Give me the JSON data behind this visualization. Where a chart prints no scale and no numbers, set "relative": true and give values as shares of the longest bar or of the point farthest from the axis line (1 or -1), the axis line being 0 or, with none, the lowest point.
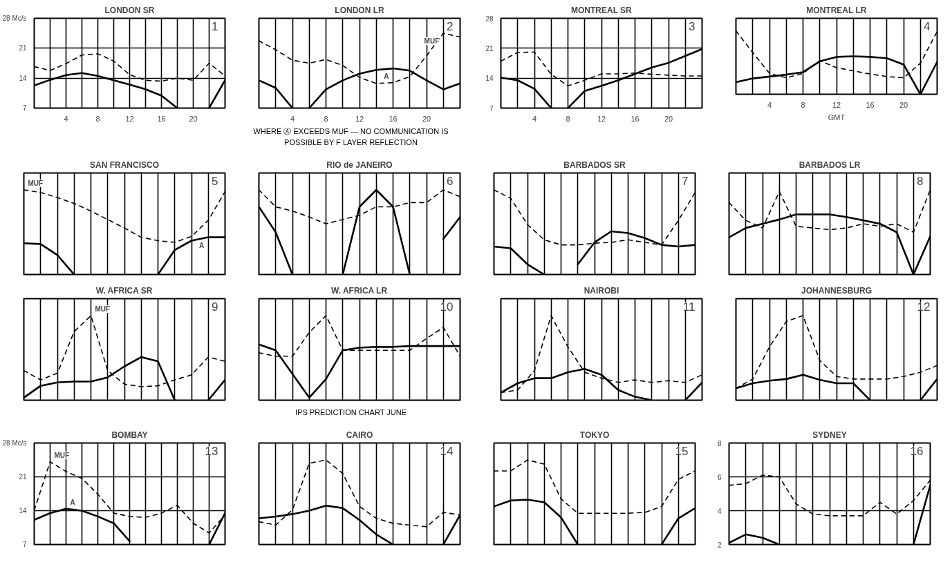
{
  "chart_data": [
    {
      "type": "line",
      "title": "LONDON SR",
      "subtitle": "1",
      "x": [
        0,
        2,
        4,
        6,
        8,
        10,
        12,
        14,
        16,
        18,
        20,
        22,
        24
      ],
      "xlim": [
        0,
        24
      ],
      "xticks": [
        {
          "value": 0,
          "label": null
        },
        {
          "value": 2,
          "label": null
        },
        4,
        {
          "value": 6,
          "label": null
        },
        8,
        {
          "value": 10,
          "label": null
        },
        12,
        {
          "value": 14,
          "label": null
        },
        16,
        {
          "value": 18,
          "label": null
        },
        20,
        {
          "value": 22,
          "label": null
        },
        {
          "value": 24,
          "label": null
        }
      ],
      "ylim": [
        7,
        28
      ],
      "yticks": [
        7,
        14,
        21,
        {
          "value": 28,
          "label": "28 Mc/s"
        }
      ],
      "grid": true,
      "series": [
        {
          "color": "#000000",
          "line_style": "dashed",
          "values": [
            16.7,
            15.8,
            17.4,
            19.4,
            19.7,
            18,
            14.8,
            13.5,
            13.3,
            14,
            13.5,
            17.5,
            14.5
          ]
        },
        {
          "color": "#000000",
          "line_style": "solid",
          "values": [
            12.3,
            13.6,
            14.7,
            15.2,
            14.5,
            13.5,
            12.5,
            11.4,
            9.9,
            7,
            null,
            7,
            13.5
          ]
        }
      ]
    },
    {
      "type": "line",
      "title": "LONDON LR",
      "subtitle": "2",
      "relative": true,
      "x": [
        0,
        2,
        4,
        6,
        8,
        10,
        12,
        14,
        16,
        18,
        20,
        22,
        24
      ],
      "xlim": [
        0,
        24
      ],
      "xticks": [
        {
          "value": 0,
          "label": null
        },
        {
          "value": 2,
          "label": null
        },
        4,
        {
          "value": 6,
          "label": null
        },
        8,
        {
          "value": 10,
          "label": null
        },
        12,
        {
          "value": 14,
          "label": null
        },
        16,
        {
          "value": 18,
          "label": null
        },
        20,
        {
          "value": 22,
          "label": null
        },
        {
          "value": 24,
          "label": null
        }
      ],
      "grid": "x",
      "annotations": [
        "WHERE Ⓐ EXCEEDS MUF --- NO COMMUNICATION IS POSSIBLE BY F LAYER REFLECTION"
      ],
      "series": [
        {
          "name": "MUF",
          "color": "#000000",
          "line_style": "dashed",
          "values": [
            0.9,
            0.78,
            0.64,
            0.6,
            0.65,
            0.57,
            0.41,
            0.33,
            0.34,
            0.42,
            0.7,
            1.0,
            0.95
          ]
        },
        {
          "name": "A",
          "color": "#000000",
          "line_style": "solid",
          "x": [
            0,
            2,
            4,
            5,
            6,
            8,
            10,
            12,
            14,
            16,
            18,
            20,
            22,
            24
          ],
          "values": [
            0.37,
            0.27,
            0,
            null,
            0,
            0.25,
            0.37,
            0.46,
            0.51,
            0.53,
            0.5,
            0.37,
            0.25,
            0.33
          ]
        }
      ]
    },
    {
      "type": "line",
      "title": "MONTREAL SR",
      "subtitle": "3",
      "x": [
        0,
        2,
        4,
        6,
        8,
        10,
        12,
        14,
        16,
        18,
        20,
        22,
        24
      ],
      "xlim": [
        0,
        24
      ],
      "xticks": [
        {
          "value": 0,
          "label": null
        },
        {
          "value": 2,
          "label": null
        },
        4,
        {
          "value": 6,
          "label": null
        },
        8,
        {
          "value": 10,
          "label": null
        },
        12,
        {
          "value": 14,
          "label": null
        },
        16,
        {
          "value": 18,
          "label": null
        },
        20,
        {
          "value": 22,
          "label": null
        },
        {
          "value": 24,
          "label": null
        }
      ],
      "ylim": [
        7,
        28
      ],
      "yticks": [
        7,
        14,
        21,
        28
      ],
      "grid": true,
      "series": [
        {
          "color": "#000000",
          "line_style": "dashed",
          "values": [
            18,
            20,
            20.1,
            14.9,
            12.2,
            13.5,
            15,
            15,
            15.2,
            14.9,
            14.7,
            14.5,
            14.5
          ]
        },
        {
          "color": "#000000",
          "line_style": "solid",
          "x": [
            0,
            2,
            4,
            6,
            7,
            8,
            10,
            12,
            14,
            16,
            18,
            20,
            22,
            24
          ],
          "values": [
            14.1,
            13.5,
            11.5,
            7,
            null,
            7,
            11,
            12.2,
            13.5,
            15,
            16.5,
            17.6,
            19.2,
            20.8
          ]
        }
      ]
    },
    {
      "type": "line",
      "title": "MONTREAL LR",
      "subtitle": "4",
      "xlabel": "GMT",
      "relative": true,
      "x": [
        0,
        2,
        4,
        6,
        8,
        10,
        12,
        14,
        16,
        18,
        20,
        22,
        24
      ],
      "xlim": [
        0,
        24
      ],
      "xticks": [
        {
          "value": 0,
          "label": null
        },
        {
          "value": 2,
          "label": null
        },
        4,
        {
          "value": 6,
          "label": null
        },
        8,
        {
          "value": 10,
          "label": null
        },
        12,
        {
          "value": 14,
          "label": null
        },
        16,
        {
          "value": 18,
          "label": null
        },
        20,
        {
          "value": 22,
          "label": null
        },
        {
          "value": 24,
          "label": null
        }
      ],
      "grid": "x",
      "series": [
        {
          "color": "#000000",
          "line_style": "dashed",
          "values": [
            1.0,
            0.66,
            0.33,
            0.26,
            0.33,
            0.53,
            0.42,
            0.37,
            0.32,
            0.28,
            0.26,
            0.49,
            0.99
          ]
        },
        {
          "color": "#000000",
          "line_style": "solid",
          "values": [
            0.19,
            0.25,
            0.28,
            0.31,
            0.35,
            0.52,
            0.59,
            0.6,
            0.59,
            0.57,
            0.47,
            0,
            0.51
          ]
        }
      ]
    },
    {
      "type": "line",
      "title": "SAN FRANCISCO",
      "subtitle": "5",
      "relative": true,
      "categories": [
        null,
        null,
        null,
        null,
        null,
        null,
        null,
        null,
        null,
        null,
        null,
        null,
        null
      ],
      "grid": "x",
      "series": [
        {
          "name": "MUF",
          "color": "#000000",
          "line_style": "dashed",
          "values": [
            1.0,
            0.97,
            0.91,
            0.84,
            0.75,
            0.65,
            0.55,
            0.44,
            0.4,
            0.38,
            0.45,
            0.64,
            0.98
          ]
        },
        {
          "name": "A",
          "color": "#000000",
          "line_style": "solid",
          "values": [
            0.37,
            0.36,
            0.23,
            0,
            null,
            null,
            null,
            null,
            0,
            0.29,
            0.4,
            0.44,
            0.44
          ]
        }
      ]
    },
    {
      "type": "line",
      "title": "RIO de JANEIRO",
      "subtitle": "6",
      "relative": true,
      "categories": [
        null,
        null,
        null,
        null,
        null,
        null,
        null,
        null,
        null,
        null,
        null,
        null,
        null
      ],
      "grid": "x",
      "series": [
        {
          "color": "#000000",
          "line_style": "dashed",
          "values": [
            1.0,
            0.8,
            0.75,
            0.68,
            0.6,
            0.65,
            0.7,
            0.8,
            0.8,
            0.85,
            0.85,
            1.0,
            0.92
          ]
        },
        {
          "color": "#000000",
          "line_style": "solid",
          "values": [
            0.8,
            0.5,
            0,
            null,
            null,
            0,
            0.8,
            1.0,
            0.8,
            0,
            null,
            0.42,
            0.68
          ]
        }
      ]
    },
    {
      "type": "line",
      "title": "BARBADOS SR",
      "subtitle": "7",
      "relative": true,
      "categories": [
        null,
        null,
        null,
        null,
        null,
        null,
        null,
        null,
        null,
        null,
        null,
        null,
        null
      ],
      "grid": "x",
      "series": [
        {
          "color": "#000000",
          "line_style": "dashed",
          "values": [
            1.0,
            0.9,
            0.59,
            0.41,
            0.35,
            0.35,
            0.37,
            0.38,
            0.41,
            0.38,
            0.35,
            0.64,
            0.97
          ]
        },
        {
          "color": "#000000",
          "line_style": "solid",
          "values": [
            0.33,
            0.31,
            0.12,
            0,
            null,
            0.12,
            0.38,
            0.51,
            0.49,
            0.43,
            0.35,
            0.33,
            0.35
          ]
        }
      ]
    },
    {
      "type": "line",
      "title": "BARBADOS LR",
      "subtitle": "8",
      "relative": true,
      "categories": [
        null,
        null,
        null,
        null,
        null,
        null,
        null,
        null,
        null,
        null,
        null,
        null,
        null
      ],
      "grid": "x",
      "series": [
        {
          "color": "#000000",
          "line_style": "dashed",
          "values": [
            0.85,
            0.64,
            0.55,
            0.98,
            0.57,
            0.55,
            0.53,
            0.55,
            0.6,
            0.57,
            0.6,
            0.5,
            1.0
          ]
        },
        {
          "color": "#000000",
          "line_style": "solid",
          "values": [
            0.44,
            0.55,
            0.6,
            0.65,
            0.71,
            0.71,
            0.71,
            0.68,
            0.64,
            0.6,
            0.5,
            0,
            0.45
          ]
        }
      ]
    },
    {
      "type": "line",
      "title": "W. AFRICA SR",
      "subtitle": "9",
      "relative": true,
      "categories": [
        null,
        null,
        null,
        null,
        null,
        null,
        null,
        null,
        null,
        null,
        null,
        null,
        null
      ],
      "grid": "x",
      "series": [
        {
          "name": "MUF",
          "color": "#000000",
          "line_style": "dashed",
          "values": [
            0.35,
            0.24,
            0.32,
            0.81,
            1.0,
            0.35,
            0.19,
            0.16,
            0.17,
            0.24,
            0.3,
            0.51,
            0.46
          ]
        },
        {
          "color": "#000000",
          "line_style": "solid",
          "values": [
            0.03,
            0.17,
            0.21,
            0.22,
            0.22,
            0.27,
            0.4,
            0.51,
            0.46,
            0,
            null,
            0,
            0.24
          ]
        }
      ]
    },
    {
      "type": "line",
      "title": "W. AFRICA LR",
      "subtitle": "10",
      "relative": true,
      "categories": [
        null,
        null,
        null,
        null,
        null,
        null,
        null,
        null,
        null,
        null,
        null,
        null,
        null
      ],
      "grid": "x",
      "annotations": [
        "IPS PREDICTION CHART JUNE"
      ],
      "series": [
        {
          "color": "#000000",
          "line_style": "dashed",
          "values": [
            0.56,
            0.52,
            0.52,
            0.8,
            1.0,
            0.59,
            0.59,
            0.59,
            0.59,
            0.59,
            0.73,
            0.86,
            0.52
          ]
        },
        {
          "color": "#000000",
          "line_style": "solid",
          "values": [
            0.66,
            0.59,
            0.31,
            0.03,
            0.25,
            0.59,
            0.62,
            0.63,
            0.63,
            0.64,
            0.64,
            0.64,
            0.64
          ]
        }
      ]
    },
    {
      "type": "line",
      "title": "NAIROBI",
      "subtitle": "11",
      "relative": true,
      "categories": [
        null,
        null,
        null,
        null,
        null,
        null,
        null,
        null,
        null,
        null,
        null,
        null,
        null
      ],
      "grid": "x",
      "series": [
        {
          "color": "#000000",
          "line_style": "dashed",
          "values": [
            0.09,
            0.12,
            0.35,
            1.0,
            0.63,
            0.33,
            0.26,
            0.21,
            0.24,
            0.21,
            0.23,
            0.21,
            0.3
          ]
        },
        {
          "color": "#000000",
          "line_style": "solid",
          "values": [
            0.09,
            0.2,
            0.26,
            0.26,
            0.33,
            0.37,
            0.3,
            0.12,
            0.04,
            0,
            null,
            0,
            0.21
          ]
        }
      ]
    },
    {
      "type": "line",
      "title": "JOHANNESBURG",
      "subtitle": "12",
      "relative": true,
      "categories": [
        null,
        null,
        null,
        null,
        null,
        null,
        null,
        null,
        null,
        null,
        null,
        null,
        null
      ],
      "grid": "x",
      "series": [
        {
          "color": "#000000",
          "line_style": "dashed",
          "values": [
            0.14,
            0.25,
            0.63,
            0.93,
            1.0,
            0.47,
            0.28,
            0.25,
            0.25,
            0.25,
            0.28,
            0.33,
            0.41
          ]
        },
        {
          "color": "#000000",
          "line_style": "solid",
          "values": [
            0.14,
            0.2,
            0.23,
            0.25,
            0.3,
            0.24,
            0.2,
            0.2,
            0,
            null,
            null,
            0,
            0.25
          ]
        }
      ]
    },
    {
      "type": "line",
      "title": "BOMBAY",
      "subtitle": "13",
      "categories": [
        null,
        null,
        null,
        null,
        null,
        null,
        null,
        null,
        null,
        null,
        null,
        null,
        null
      ],
      "ylim": [
        7,
        28
      ],
      "yticks": [
        7,
        14,
        21,
        {
          "value": 28,
          "label": "28 Mc/s"
        }
      ],
      "grid": true,
      "series": [
        {
          "name": "MUF",
          "color": "#000000",
          "line_style": "dashed",
          "values": [
            14.1,
            24.1,
            22.1,
            20.7,
            17.4,
            13.5,
            12.8,
            12.6,
            13.5,
            15.1,
            11.4,
            9.4,
            13.1
          ]
        },
        {
          "name": "A",
          "color": "#000000",
          "line_style": "solid",
          "values": [
            12.1,
            13.5,
            14.4,
            14,
            12.8,
            11.4,
            7.7,
            null,
            null,
            null,
            null,
            7,
            13.5
          ]
        }
      ]
    },
    {
      "type": "line",
      "title": "CAIRO",
      "subtitle": "14",
      "relative": true,
      "categories": [
        null,
        null,
        null,
        null,
        null,
        null,
        null,
        null,
        null,
        null,
        null,
        null,
        null
      ],
      "grid": "x",
      "series": [
        {
          "color": "#000000",
          "line_style": "dashed",
          "values": [
            0.27,
            0.23,
            0.41,
            0.96,
            1.0,
            0.84,
            0.45,
            0.31,
            0.25,
            0.23,
            0.21,
            0.38,
            0.35
          ]
        },
        {
          "color": "#000000",
          "line_style": "solid",
          "values": [
            0.31,
            0.33,
            0.36,
            0.4,
            0.46,
            0.43,
            0.29,
            0.12,
            0,
            null,
            null,
            0,
            0.35
          ]
        }
      ]
    },
    {
      "type": "line",
      "title": "TOKYO",
      "subtitle": "15",
      "relative": true,
      "categories": [
        null,
        null,
        null,
        null,
        null,
        null,
        null,
        null,
        null,
        null,
        null,
        null,
        null
      ],
      "grid": "x",
      "series": [
        {
          "color": "#000000",
          "line_style": "dashed",
          "values": [
            0.87,
            0.87,
            1.0,
            0.95,
            0.54,
            0.37,
            0.37,
            0.37,
            0.37,
            0.38,
            0.45,
            0.77,
            0.87
          ]
        },
        {
          "color": "#000000",
          "line_style": "solid",
          "values": [
            0.45,
            0.52,
            0.53,
            0.5,
            0.32,
            0,
            null,
            null,
            null,
            null,
            0,
            0.31,
            0.43
          ]
        }
      ]
    },
    {
      "type": "line",
      "title": "SYDNEY",
      "subtitle": "16",
      "categories": [
        null,
        null,
        null,
        null,
        null,
        null,
        null,
        null,
        null,
        null,
        null,
        null,
        null
      ],
      "ylim": [
        2,
        8
      ],
      "yticks": [
        2,
        4,
        6,
        8
      ],
      "grid": true,
      "series": [
        {
          "color": "#000000",
          "line_style": "dashed",
          "values": [
            5.5,
            5.6,
            6.1,
            6.0,
            4.4,
            3.8,
            3.7,
            3.7,
            3.7,
            4.5,
            3.8,
            4.6,
            5.8
          ]
        },
        {
          "color": "#000000",
          "line_style": "solid",
          "values": [
            2.1,
            2.6,
            2.4,
            2,
            null,
            null,
            null,
            null,
            null,
            null,
            null,
            2,
            5.5
          ]
        }
      ]
    }
  ]
}
